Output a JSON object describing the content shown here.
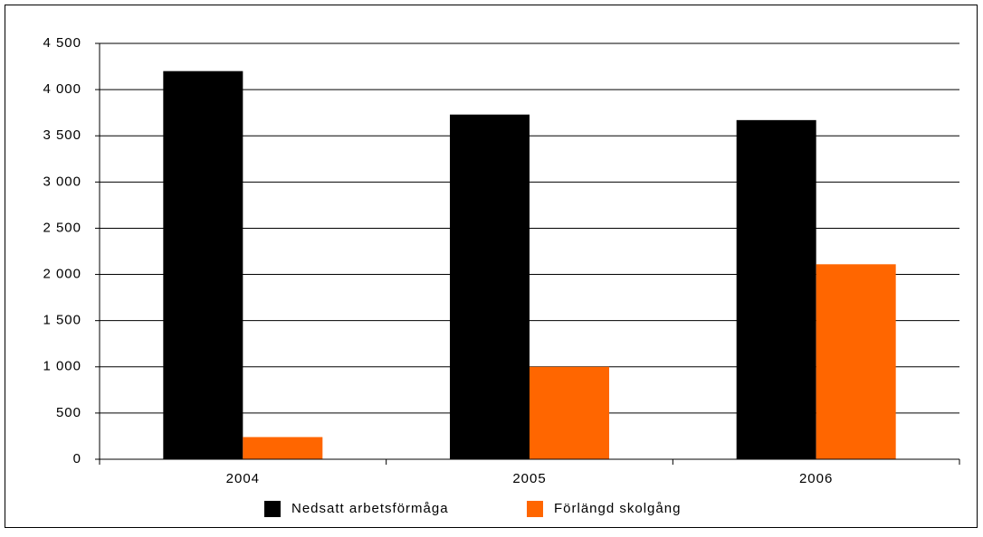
{
  "chart_data": {
    "type": "bar",
    "categories": [
      "2004",
      "2005",
      "2006"
    ],
    "series": [
      {
        "name": "Nedsatt arbetsförmåga",
        "color": "#000000",
        "values": [
          4200,
          3730,
          3670
        ]
      },
      {
        "name": "Förlängd skolgång",
        "color": "#ff6600",
        "values": [
          240,
          1000,
          2110
        ]
      }
    ],
    "ylim": [
      0,
      4500
    ],
    "yticks": [
      0,
      500,
      {
        "value": 1000,
        "label": "1 000"
      },
      {
        "value": 1500,
        "label": "1 500"
      },
      {
        "value": 2000,
        "label": "2 000"
      },
      {
        "value": 2500,
        "label": "2 500"
      },
      {
        "value": 3000,
        "label": "3 000"
      },
      {
        "value": 3500,
        "label": "3 500"
      },
      {
        "value": 4000,
        "label": "4 000"
      },
      {
        "value": 4500,
        "label": "4 500"
      }
    ],
    "grid": true,
    "legend": "bottom"
  }
}
